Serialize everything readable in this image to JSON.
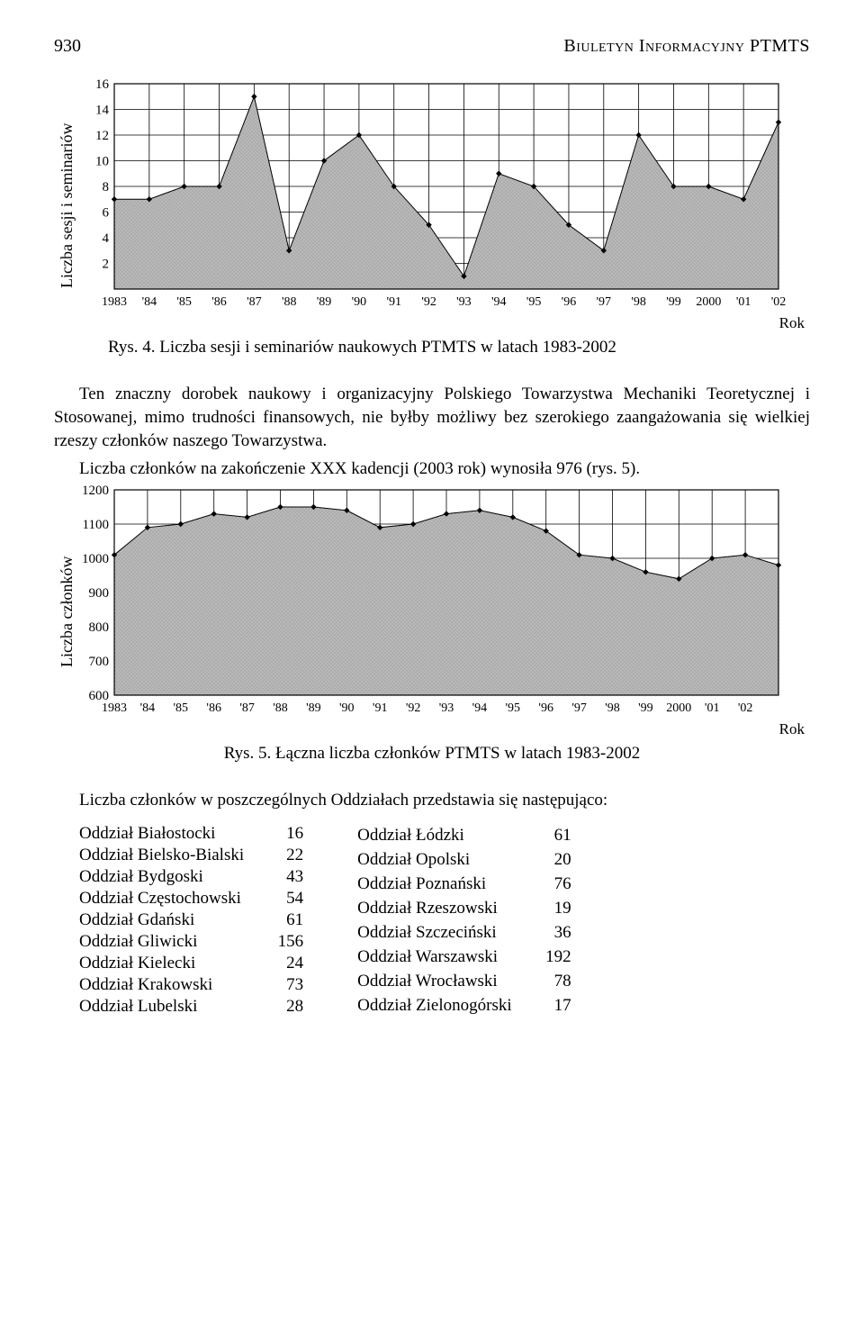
{
  "header": {
    "page_number": "930",
    "title": "Biuletyn Informacyjny PTMTS"
  },
  "chart1": {
    "type": "area-with-markers",
    "ylabel": "Liczba sesji i seminariów",
    "xlabel_right": "Rok",
    "x_labels": [
      "1983",
      "'84",
      "'85",
      "'86",
      "'87",
      "'88",
      "'89",
      "'90",
      "'91",
      "'92",
      "'93",
      "'94",
      "'95",
      "'96",
      "'97",
      "'98",
      "'99",
      "2000",
      "'01",
      "'02"
    ],
    "values": [
      7,
      7,
      8,
      8,
      15,
      3,
      10,
      12,
      8,
      5,
      1,
      9,
      8,
      5,
      3,
      12,
      8,
      8,
      7,
      13
    ],
    "ylim": [
      0,
      16
    ],
    "yticks": [
      2,
      4,
      6,
      8,
      10,
      12,
      14,
      16
    ],
    "fill_color": "#b9b9b9",
    "hatch": true,
    "line_color": "#000000",
    "marker_color": "#000000",
    "grid_color": "#000000",
    "background_color": "#ffffff",
    "line_width": 1,
    "marker_size": 3.2,
    "caption": "Rys. 4. Liczba sesji i seminariów naukowych PTMTS w latach 1983-2002"
  },
  "paragraph1_a": "Ten znaczny dorobek naukowy i organizacyjny Polskiego Towarzystwa Mechaniki Teoretycznej i Stosowanej, mimo trudności finansowych, nie byłby możliwy bez szerokiego zaangażowania się wielkiej rzeszy członków naszego Towarzystwa.",
  "paragraph1_b": "Liczba członków na zakończenie XXX kadencji (2003 rok) wynosiła 976 (rys. 5).",
  "chart2": {
    "type": "area-with-markers",
    "ylabel": "Liczba członków",
    "xlabel_right": "Rok",
    "x_labels": [
      "1983",
      "'84",
      "'85",
      "'86",
      "'87",
      "'88",
      "'89",
      "'90",
      "'91",
      "'92",
      "'93",
      "'94",
      "'95",
      "'96",
      "'97",
      "'98",
      "'99",
      "2000",
      "'01",
      "'02"
    ],
    "values": [
      1010,
      1090,
      1100,
      1130,
      1120,
      1150,
      1150,
      1140,
      1090,
      1100,
      1130,
      1140,
      1120,
      1080,
      1010,
      1000,
      960,
      940,
      1000,
      1010
    ],
    "last_extra": 980,
    "ylim": [
      600,
      1200
    ],
    "yticks": [
      600,
      700,
      800,
      900,
      1000,
      1100,
      1200
    ],
    "fill_color": "#b9b9b9",
    "hatch": true,
    "line_color": "#000000",
    "marker_color": "#000000",
    "grid_color": "#000000",
    "background_color": "#ffffff",
    "line_width": 1,
    "marker_size": 3.2,
    "caption": "Rys. 5. Łączna liczba członków PTMTS w latach 1983-2002"
  },
  "paragraph2": "Liczba członków w poszczególnych Oddziałach przedstawia się następująco:",
  "oddzialy_left": [
    {
      "name": "Oddział Białostocki",
      "val": "16"
    },
    {
      "name": "Oddział Bielsko-Bialski",
      "val": "22"
    },
    {
      "name": "Oddział Bydgoski",
      "val": "43"
    },
    {
      "name": "Oddział Częstochowski",
      "val": "54"
    },
    {
      "name": "Oddział Gdański",
      "val": "61"
    },
    {
      "name": "Oddział Gliwicki",
      "val": "156"
    },
    {
      "name": "Oddział Kielecki",
      "val": "24"
    },
    {
      "name": "Oddział Krakowski",
      "val": "73"
    },
    {
      "name": "Oddział Lubelski",
      "val": "28"
    }
  ],
  "oddzialy_right": [
    {
      "name": "Oddział Łódzki",
      "val": "61"
    },
    {
      "name": "Oddział Opolski",
      "val": "20"
    },
    {
      "name": "Oddział Poznański",
      "val": "76"
    },
    {
      "name": "Oddział Rzeszowski",
      "val": "19"
    },
    {
      "name": "Oddział Szczeciński",
      "val": "36"
    },
    {
      "name": "Oddział Warszawski",
      "val": "192"
    },
    {
      "name": "Oddział Wrocławski",
      "val": "78"
    },
    {
      "name": "Oddział Zielonogórski",
      "val": "17"
    }
  ]
}
